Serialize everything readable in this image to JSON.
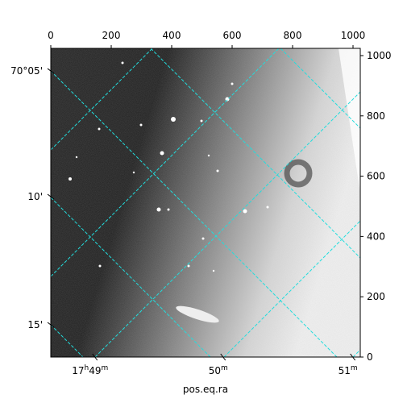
{
  "chart_data": {
    "type": "image",
    "xlabel": "pos.eq.ra",
    "xlim": [
      0,
      1024
    ],
    "ylim": [
      0,
      1024
    ],
    "xticks": [
      0,
      200,
      400,
      600,
      800,
      1000
    ],
    "yticks": [
      0,
      200,
      400,
      600,
      800,
      1000
    ],
    "ra_ticks": [
      {
        "value": 146,
        "label": "17h49m"
      },
      {
        "value": 570,
        "label": "50m"
      },
      {
        "value": 999,
        "label": "51m"
      }
    ],
    "dec_ticks": [
      {
        "value": 949,
        "label": "70°05'"
      },
      {
        "value": 532,
        "label": "10'"
      },
      {
        "value": 107,
        "label": "15'"
      }
    ]
  }
}
